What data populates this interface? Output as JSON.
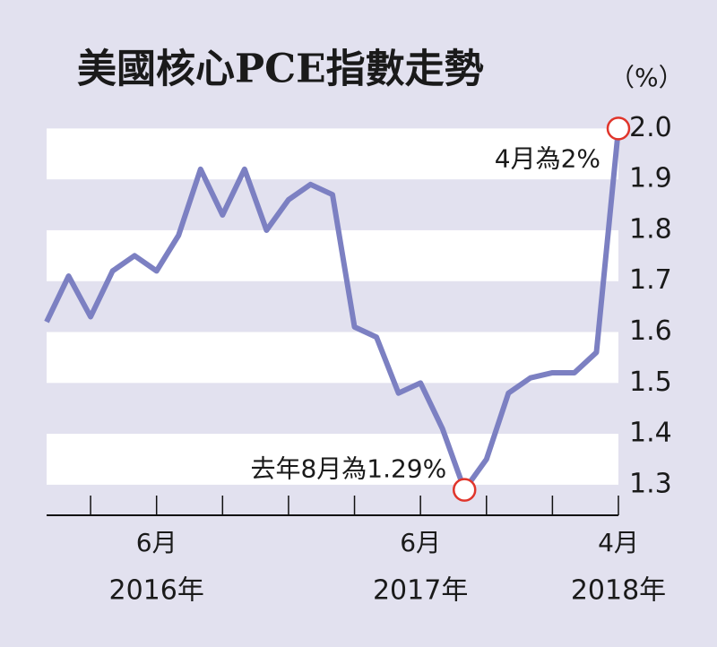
{
  "chart_data": {
    "type": "line",
    "title": "美國核心PCE指數走勢",
    "unit_label": "（%）",
    "categories": [
      null,
      null,
      null,
      null,
      null,
      "6月",
      null,
      null,
      null,
      null,
      null,
      null,
      null,
      null,
      null,
      null,
      null,
      "6月",
      null,
      null,
      null,
      null,
      null,
      null,
      null,
      null,
      "4月"
    ],
    "years": [
      null,
      null,
      null,
      null,
      null,
      "2016年",
      null,
      null,
      null,
      null,
      null,
      null,
      null,
      null,
      null,
      null,
      null,
      "2017年",
      null,
      null,
      null,
      null,
      null,
      null,
      null,
      null,
      "2018年"
    ],
    "series": [
      {
        "color": "#7c80c2",
        "values": [
          1.62,
          1.71,
          1.63,
          1.72,
          1.75,
          1.72,
          1.79,
          1.92,
          1.83,
          1.92,
          1.8,
          1.86,
          1.89,
          1.87,
          1.61,
          1.59,
          1.48,
          1.5,
          1.41,
          1.29,
          1.35,
          1.48,
          1.51,
          1.52,
          1.52,
          1.56,
          2.0
        ]
      }
    ],
    "ylim": [
      1.24,
      2.02
    ],
    "yticks": [
      1.3,
      1.4,
      1.5,
      1.6,
      1.7,
      1.8,
      1.9,
      {
        "value": 2.0,
        "label": "2.0"
      }
    ],
    "annotations": [
      {
        "text": "4月為2%",
        "index": 26
      },
      {
        "text": "去年8月為1.29%",
        "index": 19
      }
    ],
    "background_color": "#e2e1ef",
    "band_color": "#ffffff",
    "marker_color": "#e0352b"
  }
}
